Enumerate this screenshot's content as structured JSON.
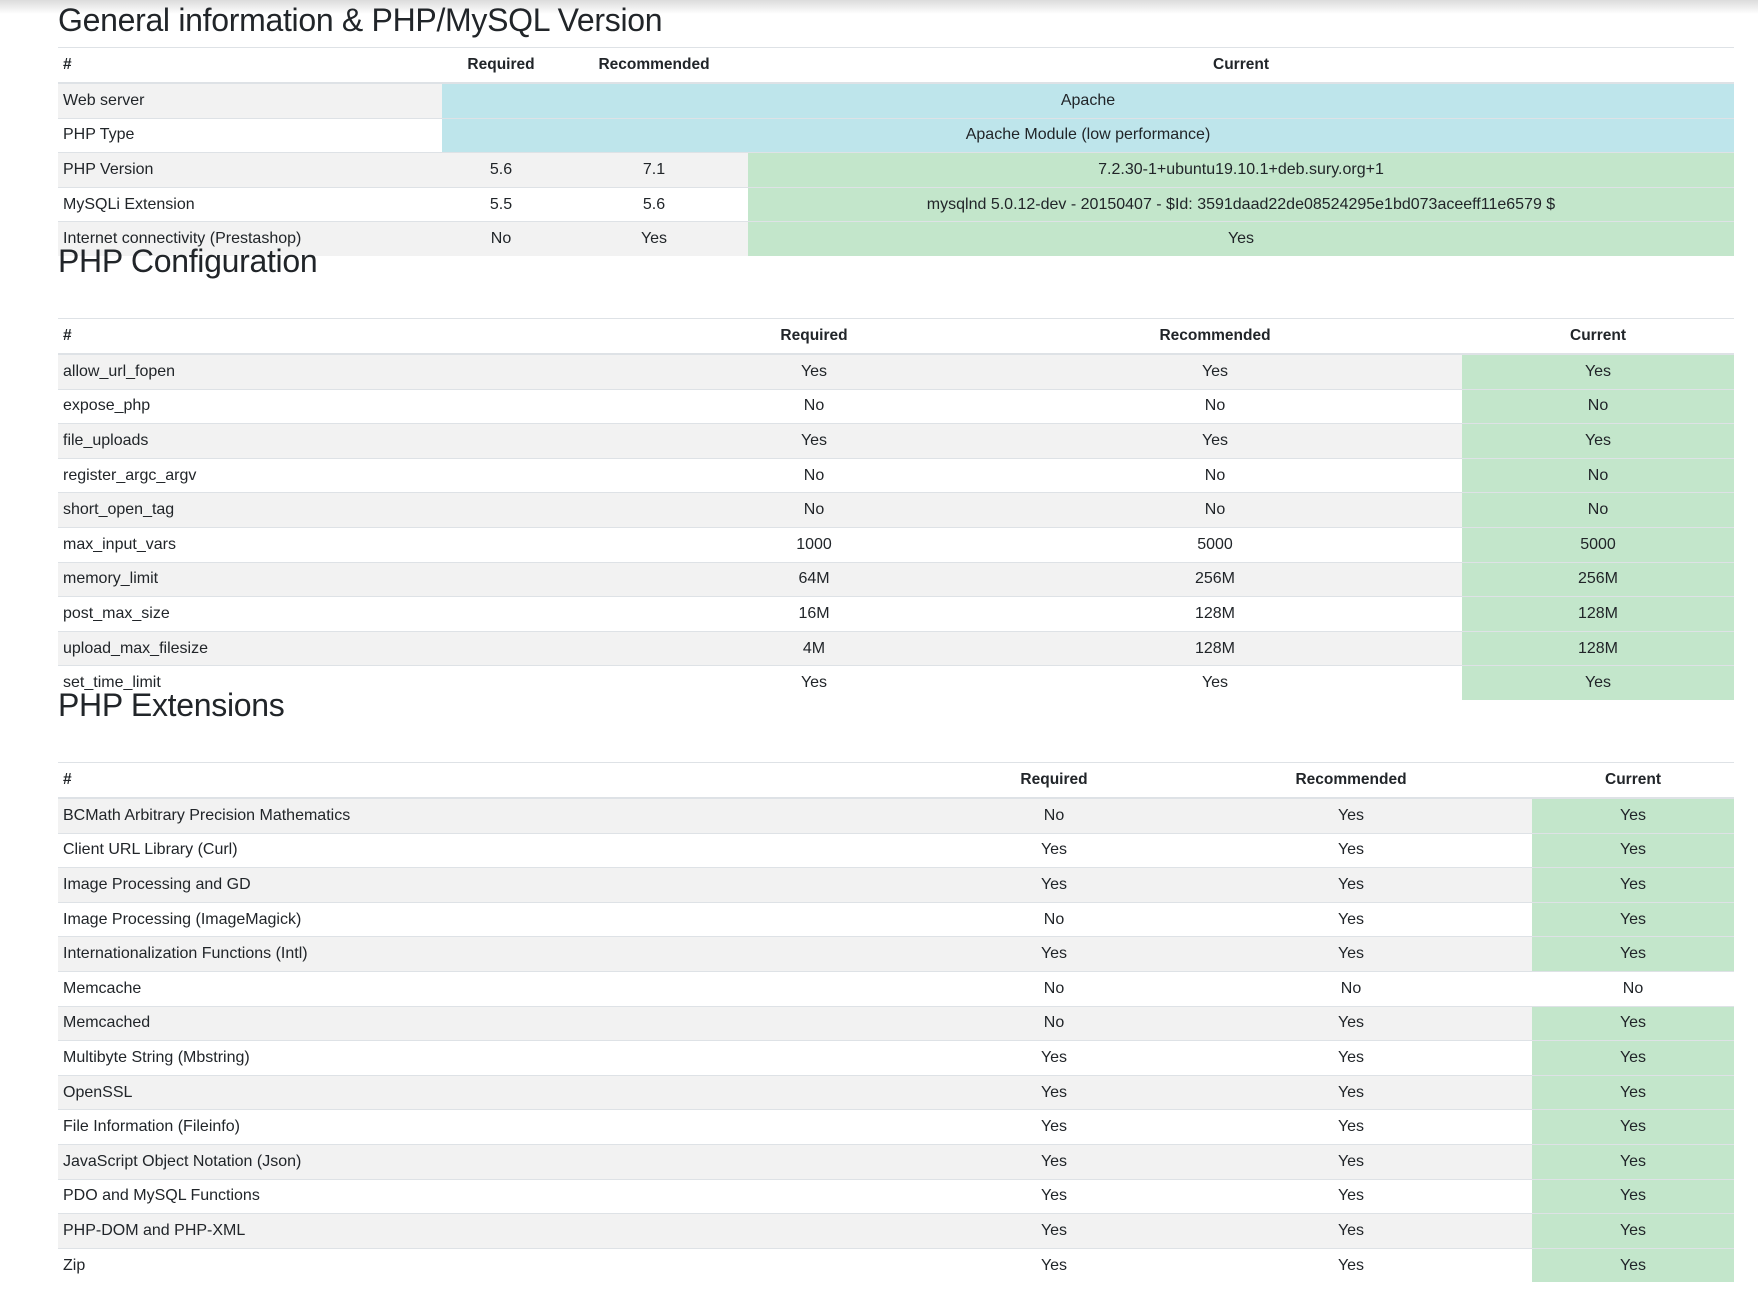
{
  "colors": {
    "success": "#c3e6cb",
    "info": "#bee5eb",
    "stripe": "#f2f2f2"
  },
  "sections": [
    {
      "title": "General information & PHP/MySQL Version",
      "headers": [
        "#",
        "Required",
        "Recommended",
        "Current"
      ],
      "rows": [
        {
          "name": "Web server",
          "current": "Apache",
          "status": "info",
          "span": true
        },
        {
          "name": "PHP Type",
          "current": "Apache Module (low performance)",
          "status": "info",
          "span": true
        },
        {
          "name": "PHP Version",
          "required": "5.6",
          "recommended": "7.1",
          "current": "7.2.30-1+ubuntu19.10.1+deb.sury.org+1",
          "status": "ok"
        },
        {
          "name": "MySQLi Extension",
          "required": "5.5",
          "recommended": "5.6",
          "current": "mysqlnd 5.0.12-dev - 20150407 - $Id: 3591daad22de08524295e1bd073aceeff11e6579 $",
          "status": "ok"
        },
        {
          "name": "Internet connectivity (Prestashop)",
          "required": "No",
          "recommended": "Yes",
          "current": "Yes",
          "status": "ok"
        }
      ]
    },
    {
      "title": "PHP Configuration",
      "headers": [
        "#",
        "Required",
        "Recommended",
        "Current"
      ],
      "rows": [
        {
          "name": "allow_url_fopen",
          "required": "Yes",
          "recommended": "Yes",
          "current": "Yes",
          "status": "ok"
        },
        {
          "name": "expose_php",
          "required": "No",
          "recommended": "No",
          "current": "No",
          "status": "ok"
        },
        {
          "name": "file_uploads",
          "required": "Yes",
          "recommended": "Yes",
          "current": "Yes",
          "status": "ok"
        },
        {
          "name": "register_argc_argv",
          "required": "No",
          "recommended": "No",
          "current": "No",
          "status": "ok"
        },
        {
          "name": "short_open_tag",
          "required": "No",
          "recommended": "No",
          "current": "No",
          "status": "ok"
        },
        {
          "name": "max_input_vars",
          "required": "1000",
          "recommended": "5000",
          "current": "5000",
          "status": "ok"
        },
        {
          "name": "memory_limit",
          "required": "64M",
          "recommended": "256M",
          "current": "256M",
          "status": "ok"
        },
        {
          "name": "post_max_size",
          "required": "16M",
          "recommended": "128M",
          "current": "128M",
          "status": "ok"
        },
        {
          "name": "upload_max_filesize",
          "required": "4M",
          "recommended": "128M",
          "current": "128M",
          "status": "ok"
        },
        {
          "name": "set_time_limit",
          "required": "Yes",
          "recommended": "Yes",
          "current": "Yes",
          "status": "ok"
        }
      ]
    },
    {
      "title": "PHP Extensions",
      "headers": [
        "#",
        "Required",
        "Recommended",
        "Current"
      ],
      "rows": [
        {
          "name": "BCMath Arbitrary Precision Mathematics",
          "required": "No",
          "recommended": "Yes",
          "current": "Yes",
          "status": "ok"
        },
        {
          "name": "Client URL Library (Curl)",
          "required": "Yes",
          "recommended": "Yes",
          "current": "Yes",
          "status": "ok"
        },
        {
          "name": "Image Processing and GD",
          "required": "Yes",
          "recommended": "Yes",
          "current": "Yes",
          "status": "ok"
        },
        {
          "name": "Image Processing (ImageMagick)",
          "required": "No",
          "recommended": "Yes",
          "current": "Yes",
          "status": "ok"
        },
        {
          "name": "Internationalization Functions (Intl)",
          "required": "Yes",
          "recommended": "Yes",
          "current": "Yes",
          "status": "ok"
        },
        {
          "name": "Memcache",
          "required": "No",
          "recommended": "No",
          "current": "No",
          "status": "none"
        },
        {
          "name": "Memcached",
          "required": "No",
          "recommended": "Yes",
          "current": "Yes",
          "status": "ok"
        },
        {
          "name": "Multibyte String (Mbstring)",
          "required": "Yes",
          "recommended": "Yes",
          "current": "Yes",
          "status": "ok"
        },
        {
          "name": "OpenSSL",
          "required": "Yes",
          "recommended": "Yes",
          "current": "Yes",
          "status": "ok"
        },
        {
          "name": "File Information (Fileinfo)",
          "required": "Yes",
          "recommended": "Yes",
          "current": "Yes",
          "status": "ok"
        },
        {
          "name": "JavaScript Object Notation (Json)",
          "required": "Yes",
          "recommended": "Yes",
          "current": "Yes",
          "status": "ok"
        },
        {
          "name": "PDO and MySQL Functions",
          "required": "Yes",
          "recommended": "Yes",
          "current": "Yes",
          "status": "ok"
        },
        {
          "name": "PHP-DOM and PHP-XML",
          "required": "Yes",
          "recommended": "Yes",
          "current": "Yes",
          "status": "ok"
        },
        {
          "name": "Zip",
          "required": "Yes",
          "recommended": "Yes",
          "current": "Yes",
          "status": "ok"
        }
      ]
    }
  ]
}
